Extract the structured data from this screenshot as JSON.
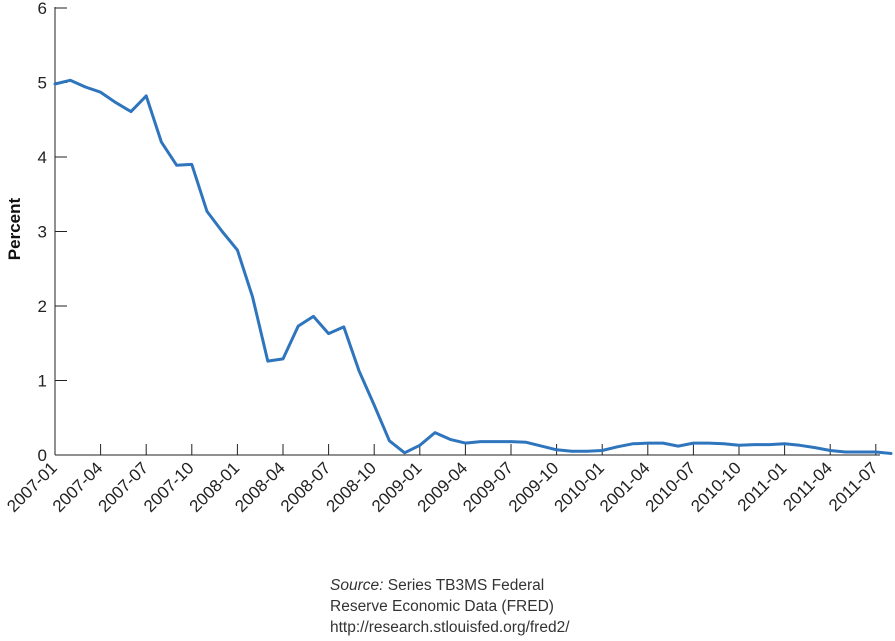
{
  "chart_data": {
    "type": "line",
    "ylabel": "Percent",
    "ylim": [
      0,
      6
    ],
    "yticks": [
      0,
      1,
      2,
      3,
      4,
      5,
      6
    ],
    "xticks": [
      "2007-01",
      "2007-04",
      "2007-07",
      "2007-10",
      "2008-01",
      "2008-04",
      "2008-07",
      "2008-10",
      "2009-01",
      "2009-04",
      "2009-07",
      "2009-10",
      "2010-01",
      "2001-04",
      "2010-07",
      "2010-10",
      "2011-01",
      "2011-04",
      "2011-07"
    ],
    "grid": false,
    "line_color": "#2f75bd",
    "series": [
      {
        "x": [
          "2007-01",
          "2007-02",
          "2007-03",
          "2007-04",
          "2007-05",
          "2007-06",
          "2007-07",
          "2007-08",
          "2007-09",
          "2007-10",
          "2007-11",
          "2007-12",
          "2008-01",
          "2008-02",
          "2008-03",
          "2008-04",
          "2008-05",
          "2008-06",
          "2008-07",
          "2008-08",
          "2008-09",
          "2008-10",
          "2008-11",
          "2008-12",
          "2009-01",
          "2009-02",
          "2009-03",
          "2009-04",
          "2009-05",
          "2009-06",
          "2009-07",
          "2009-08",
          "2009-09",
          "2009-10",
          "2009-11",
          "2009-12",
          "2010-01",
          "2010-02",
          "2010-03",
          "2010-04",
          "2010-05",
          "2010-06",
          "2010-07",
          "2010-08",
          "2010-09",
          "2010-10",
          "2010-11",
          "2010-12",
          "2011-01",
          "2011-02",
          "2011-03",
          "2011-04",
          "2011-05",
          "2011-06",
          "2011-07",
          "2011-08"
        ],
        "y": [
          4.98,
          5.03,
          4.94,
          4.87,
          4.73,
          4.61,
          4.82,
          4.2,
          3.89,
          3.9,
          3.27,
          3.0,
          2.75,
          2.12,
          1.26,
          1.29,
          1.73,
          1.86,
          1.63,
          1.72,
          1.13,
          0.67,
          0.19,
          0.03,
          0.13,
          0.3,
          0.21,
          0.16,
          0.18,
          0.18,
          0.18,
          0.17,
          0.12,
          0.07,
          0.05,
          0.05,
          0.06,
          0.11,
          0.15,
          0.16,
          0.16,
          0.12,
          0.16,
          0.16,
          0.15,
          0.13,
          0.14,
          0.14,
          0.15,
          0.13,
          0.1,
          0.06,
          0.04,
          0.04,
          0.04,
          0.02
        ]
      }
    ]
  },
  "source": {
    "label": "Source:",
    "line1": "Series TB3MS Federal",
    "line2": "Reserve Economic Data (FRED)",
    "line3": "http://research.stlouisfed.org/fred2/"
  }
}
